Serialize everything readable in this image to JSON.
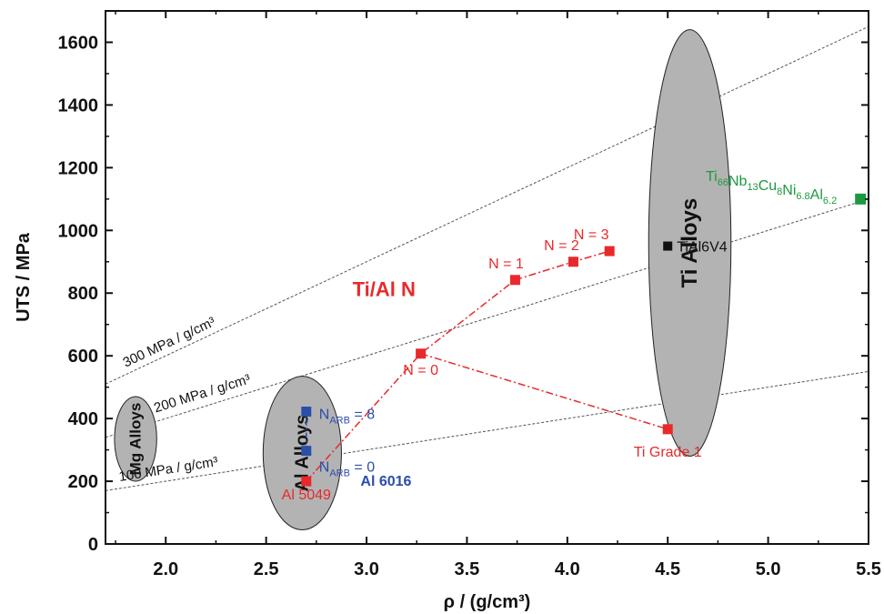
{
  "chart_data": {
    "type": "scatter",
    "title": "",
    "xlabel": "ρ / (g/cm³)",
    "ylabel": "UTS / MPa",
    "xlim": [
      1.7,
      5.5
    ],
    "ylim": [
      0,
      1700
    ],
    "x_ticks": [
      "2.0",
      "2.5",
      "3.0",
      "3.5",
      "4.0",
      "4.5",
      "5.0",
      "5.5"
    ],
    "y_ticks": [
      "0",
      "200",
      "400",
      "600",
      "800",
      "1000",
      "1200",
      "1400",
      "1600"
    ],
    "reference_lines": [
      {
        "label": "100 MPa / g/cm³",
        "slope": 100
      },
      {
        "label": "200 MPa / g/cm³",
        "slope": 200
      },
      {
        "label": "300 MPa / g/cm³",
        "slope": 300
      }
    ],
    "regions": [
      {
        "label": "Mg Alloys",
        "cx": 1.85,
        "cy": 335,
        "rx": 0.105,
        "ry": 135
      },
      {
        "label": "Al Alloys",
        "cx": 2.68,
        "cy": 290,
        "rx": 0.195,
        "ry": 245
      },
      {
        "label": "Ti Alloys",
        "cx": 4.61,
        "cy": 960,
        "rx": 0.205,
        "ry": 680
      }
    ],
    "series": [
      {
        "name": "Ti/Al N",
        "color": "#e8292b",
        "line": "dash-dot",
        "points": [
          {
            "x": 2.7,
            "y": 200,
            "label": "Al 5049"
          },
          {
            "x": 3.27,
            "y": 607,
            "label": "N = 0"
          },
          {
            "x": 3.74,
            "y": 842,
            "label": "N = 1"
          },
          {
            "x": 4.03,
            "y": 900,
            "label": "N = 2"
          },
          {
            "x": 4.21,
            "y": 934,
            "label": "N = 3"
          }
        ],
        "branch": [
          {
            "x": 3.27,
            "y": 607
          },
          {
            "x": 4.5,
            "y": 366,
            "label": "Ti Grade 1"
          }
        ]
      },
      {
        "name": "Al 6016",
        "color": "#2b4ea8",
        "line": "dash-dot",
        "points": [
          {
            "x": 2.7,
            "y": 297,
            "label": "N",
            "label_sub": "ARB",
            "label_suffix": " = 0"
          },
          {
            "x": 2.7,
            "y": 422,
            "label": "N",
            "label_sub": "ARB",
            "label_suffix": " = 8"
          }
        ]
      },
      {
        "name": "TiAl6V4",
        "color": "#111111",
        "points": [
          {
            "x": 4.5,
            "y": 950,
            "label": "TiAl6V4"
          }
        ]
      },
      {
        "name": "Ti66Nb13Cu8Ni6.8Al6.2",
        "color": "#1a9a3f",
        "points": [
          {
            "x": 5.46,
            "y": 1100
          }
        ]
      }
    ],
    "series_title": "Ti/Al N",
    "green_label_parts": [
      {
        "t": "Ti",
        "s": "66"
      },
      {
        "t": "Nb",
        "s": "13"
      },
      {
        "t": "Cu",
        "s": "8"
      },
      {
        "t": "Ni",
        "s": "6.8"
      },
      {
        "t": "Al",
        "s": "6.2"
      }
    ],
    "grid": false
  }
}
